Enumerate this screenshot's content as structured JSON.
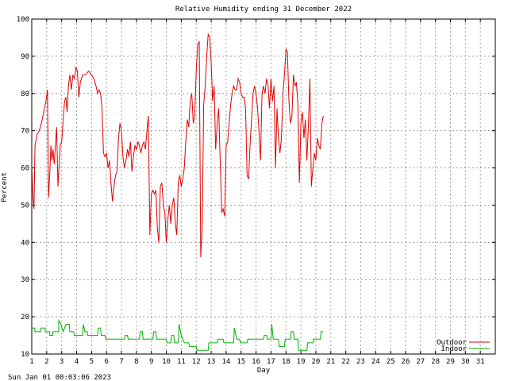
{
  "chart_data": {
    "type": "line",
    "title": "Relative Humidity ending 31 December 2022",
    "xlabel": "Day",
    "ylabel": "Percent",
    "xlim": [
      1,
      32
    ],
    "ylim": [
      10,
      100
    ],
    "x_ticks": [
      1,
      2,
      3,
      4,
      5,
      6,
      7,
      8,
      9,
      10,
      11,
      12,
      13,
      14,
      15,
      16,
      17,
      18,
      19,
      20,
      21,
      22,
      23,
      24,
      25,
      26,
      27,
      28,
      29,
      30,
      31
    ],
    "y_ticks": [
      10,
      20,
      30,
      40,
      50,
      60,
      70,
      80,
      90,
      100
    ],
    "grid": true,
    "legend_position": "bottom-right",
    "timestamp": "Sun Jan 01 00:03:06 2023",
    "series": [
      {
        "name": "Outdoor",
        "color": "#e00000",
        "points": [
          [
            1.0,
            60
          ],
          [
            1.08,
            52
          ],
          [
            1.15,
            49
          ],
          [
            1.22,
            66
          ],
          [
            1.35,
            69
          ],
          [
            1.5,
            70
          ],
          [
            1.65,
            72
          ],
          [
            1.8,
            75
          ],
          [
            1.95,
            78
          ],
          [
            2.05,
            81
          ],
          [
            2.12,
            52
          ],
          [
            2.2,
            58
          ],
          [
            2.28,
            66
          ],
          [
            2.35,
            62
          ],
          [
            2.42,
            65
          ],
          [
            2.5,
            61
          ],
          [
            2.58,
            66
          ],
          [
            2.66,
            71
          ],
          [
            2.75,
            55
          ],
          [
            2.82,
            60
          ],
          [
            2.9,
            66
          ],
          [
            3.0,
            67
          ],
          [
            3.1,
            73
          ],
          [
            3.2,
            78
          ],
          [
            3.28,
            79
          ],
          [
            3.36,
            75
          ],
          [
            3.45,
            82
          ],
          [
            3.55,
            85
          ],
          [
            3.65,
            81
          ],
          [
            3.75,
            85
          ],
          [
            3.85,
            84
          ],
          [
            3.95,
            87
          ],
          [
            4.05,
            86
          ],
          [
            4.15,
            79
          ],
          [
            4.25,
            83
          ],
          [
            4.4,
            85
          ],
          [
            4.6,
            85
          ],
          [
            4.8,
            86
          ],
          [
            5.0,
            85
          ],
          [
            5.15,
            84
          ],
          [
            5.3,
            82
          ],
          [
            5.4,
            80
          ],
          [
            5.5,
            81
          ],
          [
            5.6,
            80
          ],
          [
            5.7,
            76
          ],
          [
            5.8,
            64
          ],
          [
            5.9,
            63
          ],
          [
            6.0,
            64
          ],
          [
            6.1,
            60
          ],
          [
            6.2,
            62
          ],
          [
            6.3,
            56
          ],
          [
            6.4,
            51
          ],
          [
            6.5,
            55
          ],
          [
            6.6,
            58
          ],
          [
            6.7,
            59
          ],
          [
            6.8,
            68
          ],
          [
            6.9,
            72
          ],
          [
            7.0,
            70
          ],
          [
            7.1,
            63
          ],
          [
            7.2,
            60
          ],
          [
            7.3,
            62
          ],
          [
            7.4,
            65
          ],
          [
            7.5,
            63
          ],
          [
            7.6,
            67
          ],
          [
            7.7,
            59
          ],
          [
            7.8,
            63
          ],
          [
            7.9,
            66
          ],
          [
            8.0,
            65
          ],
          [
            8.1,
            67
          ],
          [
            8.2,
            66
          ],
          [
            8.3,
            64
          ],
          [
            8.4,
            66
          ],
          [
            8.5,
            67
          ],
          [
            8.6,
            65
          ],
          [
            8.7,
            70
          ],
          [
            8.8,
            74
          ],
          [
            8.9,
            42
          ],
          [
            9.0,
            53
          ],
          [
            9.1,
            54
          ],
          [
            9.2,
            53
          ],
          [
            9.3,
            54
          ],
          [
            9.4,
            44
          ],
          [
            9.5,
            40
          ],
          [
            9.6,
            55
          ],
          [
            9.7,
            56
          ],
          [
            9.8,
            50
          ],
          [
            9.9,
            48
          ],
          [
            10.0,
            40
          ],
          [
            10.1,
            46
          ],
          [
            10.2,
            50
          ],
          [
            10.3,
            45
          ],
          [
            10.4,
            50
          ],
          [
            10.5,
            52
          ],
          [
            10.6,
            45
          ],
          [
            10.7,
            42
          ],
          [
            10.8,
            56
          ],
          [
            10.9,
            58
          ],
          [
            11.0,
            55
          ],
          [
            11.1,
            57
          ],
          [
            11.2,
            60
          ],
          [
            11.3,
            67
          ],
          [
            11.4,
            73
          ],
          [
            11.5,
            71
          ],
          [
            11.6,
            78
          ],
          [
            11.7,
            80
          ],
          [
            11.8,
            72
          ],
          [
            11.9,
            74
          ],
          [
            12.0,
            86
          ],
          [
            12.1,
            93
          ],
          [
            12.2,
            94
          ],
          [
            12.3,
            36
          ],
          [
            12.4,
            45
          ],
          [
            12.5,
            77
          ],
          [
            12.6,
            82
          ],
          [
            12.7,
            90
          ],
          [
            12.8,
            96
          ],
          [
            12.9,
            95
          ],
          [
            13.0,
            88
          ],
          [
            13.1,
            78
          ],
          [
            13.2,
            82
          ],
          [
            13.3,
            65
          ],
          [
            13.4,
            72
          ],
          [
            13.5,
            76
          ],
          [
            13.6,
            62
          ],
          [
            13.7,
            48
          ],
          [
            13.8,
            49
          ],
          [
            13.9,
            47
          ],
          [
            14.0,
            66
          ],
          [
            14.1,
            67
          ],
          [
            14.2,
            72
          ],
          [
            14.3,
            77
          ],
          [
            14.4,
            80
          ],
          [
            14.5,
            82
          ],
          [
            14.6,
            81
          ],
          [
            14.7,
            81
          ],
          [
            14.8,
            84
          ],
          [
            14.9,
            83
          ],
          [
            15.0,
            80
          ],
          [
            15.1,
            79
          ],
          [
            15.2,
            79
          ],
          [
            15.3,
            76
          ],
          [
            15.4,
            58
          ],
          [
            15.5,
            57
          ],
          [
            15.6,
            66
          ],
          [
            15.7,
            73
          ],
          [
            15.8,
            80
          ],
          [
            15.9,
            82
          ],
          [
            16.0,
            80
          ],
          [
            16.1,
            76
          ],
          [
            16.2,
            70
          ],
          [
            16.3,
            62
          ],
          [
            16.4,
            80
          ],
          [
            16.5,
            82
          ],
          [
            16.6,
            80
          ],
          [
            16.7,
            84
          ],
          [
            16.8,
            82
          ],
          [
            16.9,
            76
          ],
          [
            17.0,
            84
          ],
          [
            17.1,
            78
          ],
          [
            17.2,
            82
          ],
          [
            17.3,
            60
          ],
          [
            17.4,
            76
          ],
          [
            17.5,
            68
          ],
          [
            17.6,
            64
          ],
          [
            17.7,
            68
          ],
          [
            17.8,
            80
          ],
          [
            17.9,
            85
          ],
          [
            18.0,
            92
          ],
          [
            18.1,
            91
          ],
          [
            18.2,
            78
          ],
          [
            18.3,
            72
          ],
          [
            18.4,
            74
          ],
          [
            18.5,
            85
          ],
          [
            18.6,
            82
          ],
          [
            18.7,
            83
          ],
          [
            18.8,
            77
          ],
          [
            18.9,
            56
          ],
          [
            19.0,
            72
          ],
          [
            19.1,
            75
          ],
          [
            19.2,
            68
          ],
          [
            19.3,
            73
          ],
          [
            19.4,
            62
          ],
          [
            19.5,
            71
          ],
          [
            19.6,
            84
          ],
          [
            19.7,
            55
          ],
          [
            19.8,
            60
          ],
          [
            19.9,
            64
          ],
          [
            20.0,
            62
          ],
          [
            20.1,
            68
          ],
          [
            20.2,
            66
          ],
          [
            20.3,
            65
          ],
          [
            20.4,
            72
          ],
          [
            20.5,
            74
          ]
        ]
      },
      {
        "name": "Indoor",
        "color": "#00b000",
        "points": [
          [
            1.0,
            17
          ],
          [
            1.2,
            17
          ],
          [
            1.21,
            16
          ],
          [
            1.6,
            16
          ],
          [
            1.61,
            17
          ],
          [
            1.9,
            17
          ],
          [
            1.91,
            16
          ],
          [
            2.2,
            16
          ],
          [
            2.21,
            15
          ],
          [
            2.4,
            15
          ],
          [
            2.41,
            16
          ],
          [
            2.8,
            16
          ],
          [
            2.81,
            19
          ],
          [
            2.95,
            18
          ],
          [
            3.1,
            16
          ],
          [
            3.2,
            17
          ],
          [
            3.3,
            18
          ],
          [
            3.5,
            18
          ],
          [
            3.55,
            16
          ],
          [
            3.8,
            16
          ],
          [
            3.85,
            15
          ],
          [
            4.4,
            15
          ],
          [
            4.45,
            18
          ],
          [
            4.55,
            16
          ],
          [
            4.7,
            16
          ],
          [
            4.75,
            15
          ],
          [
            5.4,
            15
          ],
          [
            5.45,
            17
          ],
          [
            5.6,
            17
          ],
          [
            5.65,
            15
          ],
          [
            5.9,
            15
          ],
          [
            5.95,
            14
          ],
          [
            7.2,
            14
          ],
          [
            7.25,
            15
          ],
          [
            7.4,
            15
          ],
          [
            7.45,
            14
          ],
          [
            8.2,
            14
          ],
          [
            8.25,
            16
          ],
          [
            8.4,
            16
          ],
          [
            8.45,
            14
          ],
          [
            9.1,
            14
          ],
          [
            9.15,
            16
          ],
          [
            9.3,
            16
          ],
          [
            9.35,
            14
          ],
          [
            10.0,
            14
          ],
          [
            10.05,
            13
          ],
          [
            10.3,
            13
          ],
          [
            10.35,
            15
          ],
          [
            10.5,
            15
          ],
          [
            10.55,
            13
          ],
          [
            10.8,
            13
          ],
          [
            10.85,
            18
          ],
          [
            11.0,
            15
          ],
          [
            11.2,
            13
          ],
          [
            11.5,
            13
          ],
          [
            11.55,
            12
          ],
          [
            12.0,
            12
          ],
          [
            12.05,
            11
          ],
          [
            12.8,
            11
          ],
          [
            12.85,
            13
          ],
          [
            13.4,
            13
          ],
          [
            13.45,
            14
          ],
          [
            13.8,
            14
          ],
          [
            13.85,
            13
          ],
          [
            14.5,
            13
          ],
          [
            14.55,
            17
          ],
          [
            14.7,
            14
          ],
          [
            14.9,
            14
          ],
          [
            14.95,
            13
          ],
          [
            15.4,
            13
          ],
          [
            15.45,
            14
          ],
          [
            16.5,
            14
          ],
          [
            16.55,
            15
          ],
          [
            16.7,
            15
          ],
          [
            16.75,
            14
          ],
          [
            17.0,
            14
          ],
          [
            17.05,
            18
          ],
          [
            17.15,
            14
          ],
          [
            17.5,
            14
          ],
          [
            17.55,
            12
          ],
          [
            17.9,
            12
          ],
          [
            17.95,
            14
          ],
          [
            18.3,
            14
          ],
          [
            18.35,
            16
          ],
          [
            18.5,
            16
          ],
          [
            18.55,
            14
          ],
          [
            18.8,
            14
          ],
          [
            18.85,
            11
          ],
          [
            19.4,
            11
          ],
          [
            19.45,
            13
          ],
          [
            19.8,
            13
          ],
          [
            19.85,
            14
          ],
          [
            20.3,
            14
          ],
          [
            20.35,
            16
          ],
          [
            20.5,
            16
          ]
        ]
      }
    ]
  }
}
